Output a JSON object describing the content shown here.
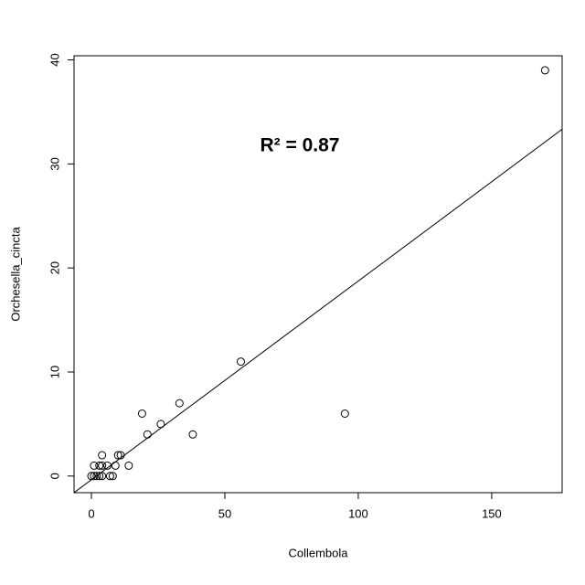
{
  "chart_data": {
    "type": "scatter",
    "annotation": "R² = 0.87",
    "x_label": "Collembola",
    "y_label": "Orchesella_cincta",
    "x": [
      170,
      56,
      95,
      33,
      19,
      26,
      38,
      21,
      14,
      10,
      11,
      9,
      6,
      4,
      4,
      3,
      1,
      7,
      8,
      0,
      1,
      2,
      3,
      4
    ],
    "values": [
      39,
      11,
      6,
      7,
      6,
      5,
      4,
      4,
      1,
      2,
      2,
      1,
      1,
      2,
      1,
      1,
      1,
      0,
      0,
      0,
      0,
      0,
      0,
      0
    ],
    "color": "#000000",
    "regression_line": {
      "intercept": -0.36,
      "slope": 0.191
    },
    "xlim": [
      -6.5,
      176.4
    ],
    "ylim": [
      -1.6,
      40.4
    ],
    "xticks": [
      0,
      50,
      100,
      150
    ],
    "yticks": [
      0,
      10,
      20,
      30,
      40
    ]
  }
}
